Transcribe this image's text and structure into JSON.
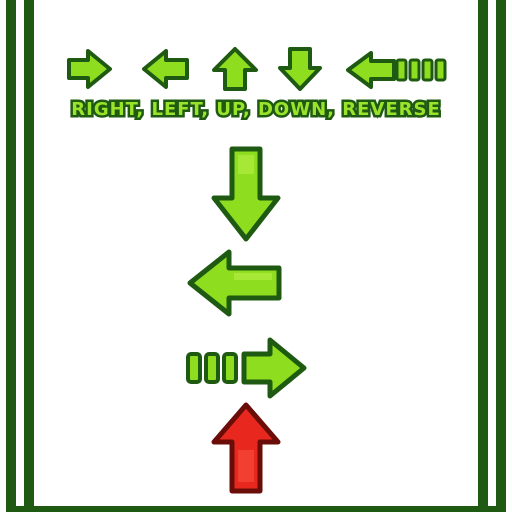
{
  "legend": {
    "text": "RIGHT, LEFT, UP, DOWN, REVERSE"
  },
  "legend_icons": [
    "right-arrow-icon",
    "left-arrow-icon",
    "up-arrow-icon",
    "down-arrow-icon",
    "reverse-arrow-icon"
  ],
  "sequence": [
    "down-arrow-icon",
    "left-arrow-icon",
    "reverse-right-arrow-icon",
    "up-arrow-icon"
  ],
  "colors": {
    "arrow_fill": "#8fdd1f",
    "arrow_highlight": "#b8f046",
    "arrow_outline": "#1f5a12",
    "active_fill": "#e8281e",
    "active_outline": "#6a0c08",
    "frame": "#1f5a12",
    "background": "#ffffff"
  }
}
